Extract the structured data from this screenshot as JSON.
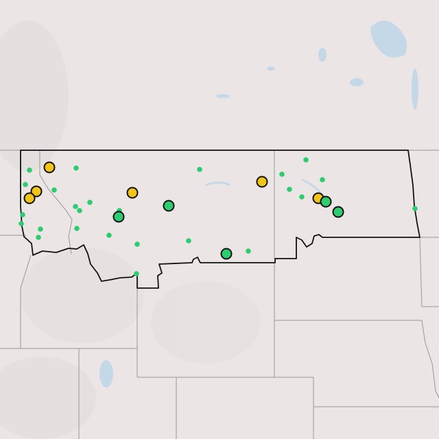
{
  "map": {
    "colors": {
      "land": "#ebe6e5",
      "water": "#c5d8e8",
      "state_border": "#9a9696",
      "region_outline": "#111111",
      "marker_yellow": "#f2c418",
      "marker_green": "#2ecc71"
    },
    "legend_visible": false
  }
}
